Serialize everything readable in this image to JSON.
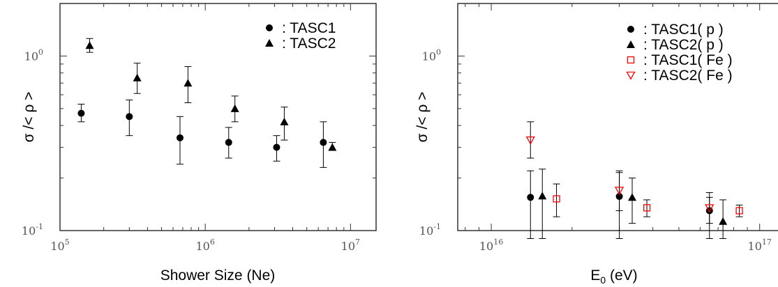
{
  "chart_data": [
    {
      "type": "scatter",
      "title": "",
      "xlabel": "Shower Size (Ne)",
      "ylabel": "σ /< ρ >",
      "xscale": "log",
      "yscale": "log",
      "xlim": [
        100000,
        15000000
      ],
      "ylim": [
        0.1,
        2.0
      ],
      "x_ticks": [
        {
          "base": "10",
          "exp": "5"
        },
        {
          "base": "10",
          "exp": "6"
        },
        {
          "base": "10",
          "exp": "7"
        }
      ],
      "y_ticks": [
        {
          "base": "10",
          "exp": "0"
        },
        {
          "base": "10",
          "exp": "-1"
        }
      ],
      "legend_position": "top-right",
      "series": [
        {
          "name": ": TASC1",
          "marker": "circle",
          "color": "#000000",
          "points": [
            {
              "x": 140000,
              "y": 0.47,
              "ylo": 0.42,
              "yhi": 0.53
            },
            {
              "x": 300000,
              "y": 0.45,
              "ylo": 0.35,
              "yhi": 0.56
            },
            {
              "x": 670000,
              "y": 0.34,
              "ylo": 0.24,
              "yhi": 0.45
            },
            {
              "x": 1450000,
              "y": 0.32,
              "ylo": 0.26,
              "yhi": 0.39
            },
            {
              "x": 3100000,
              "y": 0.3,
              "ylo": 0.25,
              "yhi": 0.35
            },
            {
              "x": 6500000,
              "y": 0.32,
              "ylo": 0.23,
              "yhi": 0.42
            }
          ]
        },
        {
          "name": ": TASC2",
          "marker": "triangle-up",
          "color": "#000000",
          "points": [
            {
              "x": 160000,
              "y": 1.15,
              "ylo": 1.05,
              "yhi": 1.26
            },
            {
              "x": 340000,
              "y": 0.75,
              "ylo": 0.61,
              "yhi": 0.91
            },
            {
              "x": 760000,
              "y": 0.7,
              "ylo": 0.54,
              "yhi": 0.87
            },
            {
              "x": 1600000,
              "y": 0.5,
              "ylo": 0.42,
              "yhi": 0.59
            },
            {
              "x": 3500000,
              "y": 0.42,
              "ylo": 0.33,
              "yhi": 0.51
            },
            {
              "x": 7500000,
              "y": 0.3,
              "ylo": 0.29,
              "yhi": 0.32
            }
          ]
        }
      ]
    },
    {
      "type": "scatter",
      "title": "",
      "xlabel": "E0 (eV)",
      "ylabel": "σ /< ρ >",
      "xscale": "log",
      "yscale": "log",
      "xlim": [
        7500000000000000,
        125000000000000000
      ],
      "ylim": [
        0.1,
        2.0
      ],
      "x_ticks": [
        {
          "base": "10",
          "exp": "16"
        },
        {
          "base": "10",
          "exp": "17"
        }
      ],
      "y_ticks": [
        {
          "base": "10",
          "exp": "0"
        },
        {
          "base": "10",
          "exp": "-1"
        }
      ],
      "legend_position": "top-right",
      "series": [
        {
          "name": ": TASC1( p )",
          "marker": "circle",
          "color": "#000000",
          "points": [
            {
              "x": 14000000000000000,
              "y": 0.155,
              "ylo": 0.09,
              "yhi": 0.22
            },
            {
              "x": 30000000000000000,
              "y": 0.157,
              "ylo": 0.09,
              "yhi": 0.215
            },
            {
              "x": 65000000000000000,
              "y": 0.13,
              "ylo": 0.09,
              "yhi": 0.155
            }
          ]
        },
        {
          "name": ": TASC2( p )",
          "marker": "triangle-up",
          "color": "#000000",
          "points": [
            {
              "x": 15500000000000000,
              "y": 0.158,
              "ylo": 0.09,
              "yhi": 0.225
            },
            {
              "x": 33500000000000000,
              "y": 0.155,
              "ylo": 0.11,
              "yhi": 0.2
            },
            {
              "x": 73000000000000000,
              "y": 0.113,
              "ylo": 0.09,
              "yhi": 0.15
            }
          ]
        },
        {
          "name": ": TASC1( Fe )",
          "marker": "square-open",
          "color": "#ff0000",
          "points": [
            {
              "x": 17500000000000000,
              "y": 0.152,
              "ylo": 0.12,
              "yhi": 0.185
            },
            {
              "x": 38000000000000000,
              "y": 0.135,
              "ylo": 0.12,
              "yhi": 0.15
            },
            {
              "x": 84000000000000000,
              "y": 0.13,
              "ylo": 0.12,
              "yhi": 0.14
            }
          ]
        },
        {
          "name": ": TASC2( Fe )",
          "marker": "triangle-down-open",
          "color": "#ff0000",
          "points": [
            {
              "x": 14000000000000000,
              "y": 0.33,
              "ylo": 0.26,
              "yhi": 0.42
            },
            {
              "x": 30000000000000000,
              "y": 0.17,
              "ylo": 0.13,
              "yhi": 0.22
            },
            {
              "x": 65000000000000000,
              "y": 0.135,
              "ylo": 0.11,
              "yhi": 0.165
            }
          ]
        }
      ]
    }
  ]
}
